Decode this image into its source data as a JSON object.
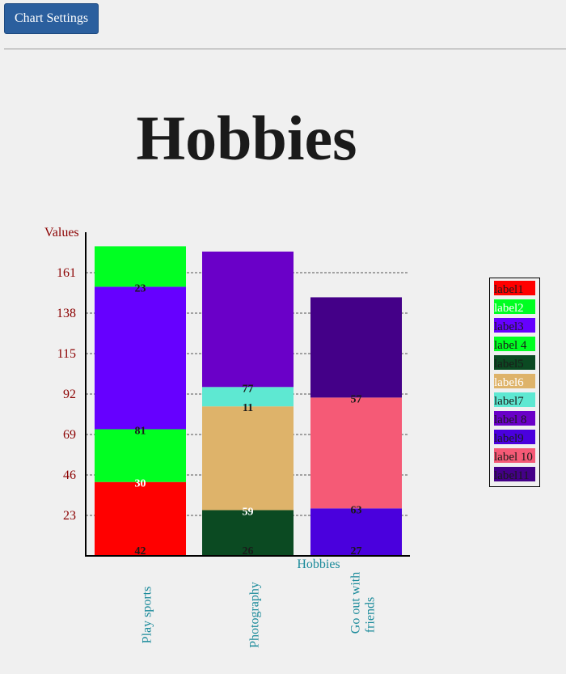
{
  "toolbar": {
    "settings_label": "Chart Settings"
  },
  "chart_data": {
    "type": "bar",
    "stacked": true,
    "title": "Hobbies",
    "xlabel": "Hobbies",
    "ylabel": "Values",
    "ylim": [
      0,
      184
    ],
    "y_ticks": [
      23,
      46,
      69,
      92,
      115,
      138,
      161
    ],
    "grid": true,
    "legend_position": "right",
    "categories": [
      "Play sports",
      "Photography",
      "Go out with friends"
    ],
    "category_lines": [
      [
        "Play sports"
      ],
      [
        "Photography"
      ],
      [
        "Go out with",
        "friends"
      ]
    ],
    "stacks": [
      [
        {
          "label": "label1",
          "value": 42,
          "color": "#ff0000",
          "text_color": "#1a1a1a"
        },
        {
          "label": "label2",
          "value": 30,
          "color": "#00ff22",
          "text_color": "#ffffff"
        },
        {
          "label": "label3",
          "value": 81,
          "color": "#6600ff",
          "text_color": "#1a1a1a"
        },
        {
          "label": "label 4",
          "value": 23,
          "color": "#00ff22",
          "text_color": "#1a1a1a"
        }
      ],
      [
        {
          "label": "label5",
          "value": 26,
          "color": "#0b4a22",
          "text_color": "#1a1a1a"
        },
        {
          "label": "label6",
          "value": 59,
          "color": "#deb36a",
          "text_color": "#ffffff"
        },
        {
          "label": "label7",
          "value": 11,
          "color": "#5ee8d2",
          "text_color": "#1a1a1a"
        },
        {
          "label": "label 8",
          "value": 77,
          "color": "#6a00c8",
          "text_color": "#1a1a1a"
        }
      ],
      [
        {
          "label": "label9",
          "value": 27,
          "color": "#4a00dd",
          "text_color": "#1a1a1a"
        },
        {
          "label": "label 10",
          "value": 63,
          "color": "#f55a76",
          "text_color": "#1a1a1a"
        },
        {
          "label": "label11",
          "value": 57,
          "color": "#440088",
          "text_color": "#1a1a1a"
        }
      ]
    ],
    "legend": [
      {
        "label": "label1",
        "color": "#ff0000",
        "text_color": "#1a1a1a"
      },
      {
        "label": "label2",
        "color": "#00ff22",
        "text_color": "#ffffff"
      },
      {
        "label": "label3",
        "color": "#6600ff",
        "text_color": "#1a1a1a"
      },
      {
        "label": "label 4",
        "color": "#00ff22",
        "text_color": "#1a1a1a"
      },
      {
        "label": "label5",
        "color": "#0b4a22",
        "text_color": "#1a1a1a"
      },
      {
        "label": "label6",
        "color": "#deb36a",
        "text_color": "#ffffff"
      },
      {
        "label": "label7",
        "color": "#5ee8d2",
        "text_color": "#1a1a1a"
      },
      {
        "label": "label 8",
        "color": "#6a00c8",
        "text_color": "#1a1a1a"
      },
      {
        "label": "label9",
        "color": "#4a00dd",
        "text_color": "#1a1a1a"
      },
      {
        "label": "label 10",
        "color": "#f55a76",
        "text_color": "#1a1a1a"
      },
      {
        "label": "label11",
        "color": "#440088",
        "text_color": "#1a1a1a"
      }
    ]
  }
}
